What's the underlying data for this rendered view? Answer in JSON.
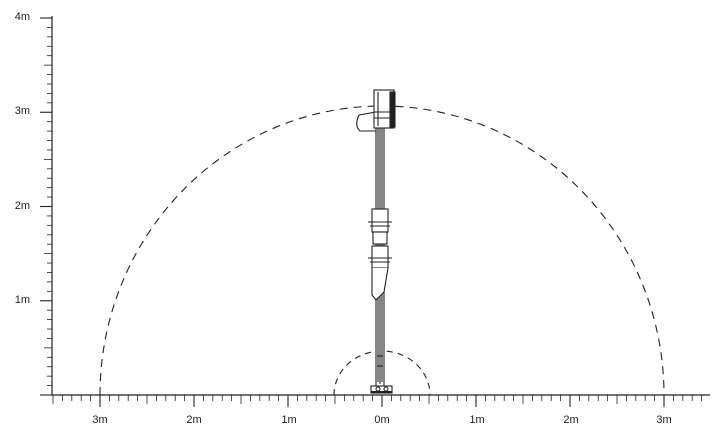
{
  "diagram": {
    "y_axis": {
      "tick_labels": [
        "4m",
        "3m",
        "2m",
        "1m"
      ],
      "tick_values": [
        4,
        3,
        2,
        1
      ],
      "minor_ticks_per_unit": 10
    },
    "x_axis": {
      "tick_labels": [
        "3m",
        "2m",
        "1m",
        "0m",
        "1m",
        "2m",
        "3m"
      ],
      "tick_values": [
        -3,
        -2,
        -1,
        0,
        1,
        2,
        3
      ],
      "minor_ticks_per_unit": 10
    },
    "outer_reach_radius_m": 3,
    "inner_reach_radius_m": 0.5,
    "mast_height_m": 3.2,
    "line_color": "#222222",
    "arc_style": "dashed"
  }
}
